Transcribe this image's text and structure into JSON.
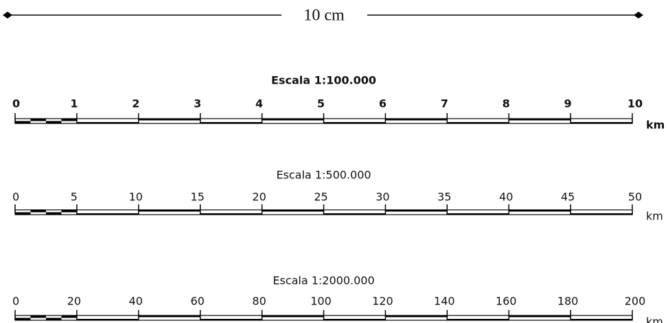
{
  "ruler": {
    "label": "10 cm"
  },
  "scales": [
    {
      "title": "Escala 1:100.000",
      "ticks": [
        "0",
        "1",
        "2",
        "3",
        "4",
        "5",
        "6",
        "7",
        "8",
        "9",
        "10"
      ],
      "unit": "km"
    },
    {
      "title": "Escala 1:500.000",
      "ticks": [
        "0",
        "5",
        "10",
        "15",
        "20",
        "25",
        "30",
        "35",
        "40",
        "45",
        "50"
      ],
      "unit": "km"
    },
    {
      "title": "Escala 1:2000.000",
      "ticks": [
        "0",
        "20",
        "40",
        "60",
        "80",
        "100",
        "120",
        "140",
        "160",
        "180",
        "200"
      ],
      "unit": "km"
    }
  ]
}
